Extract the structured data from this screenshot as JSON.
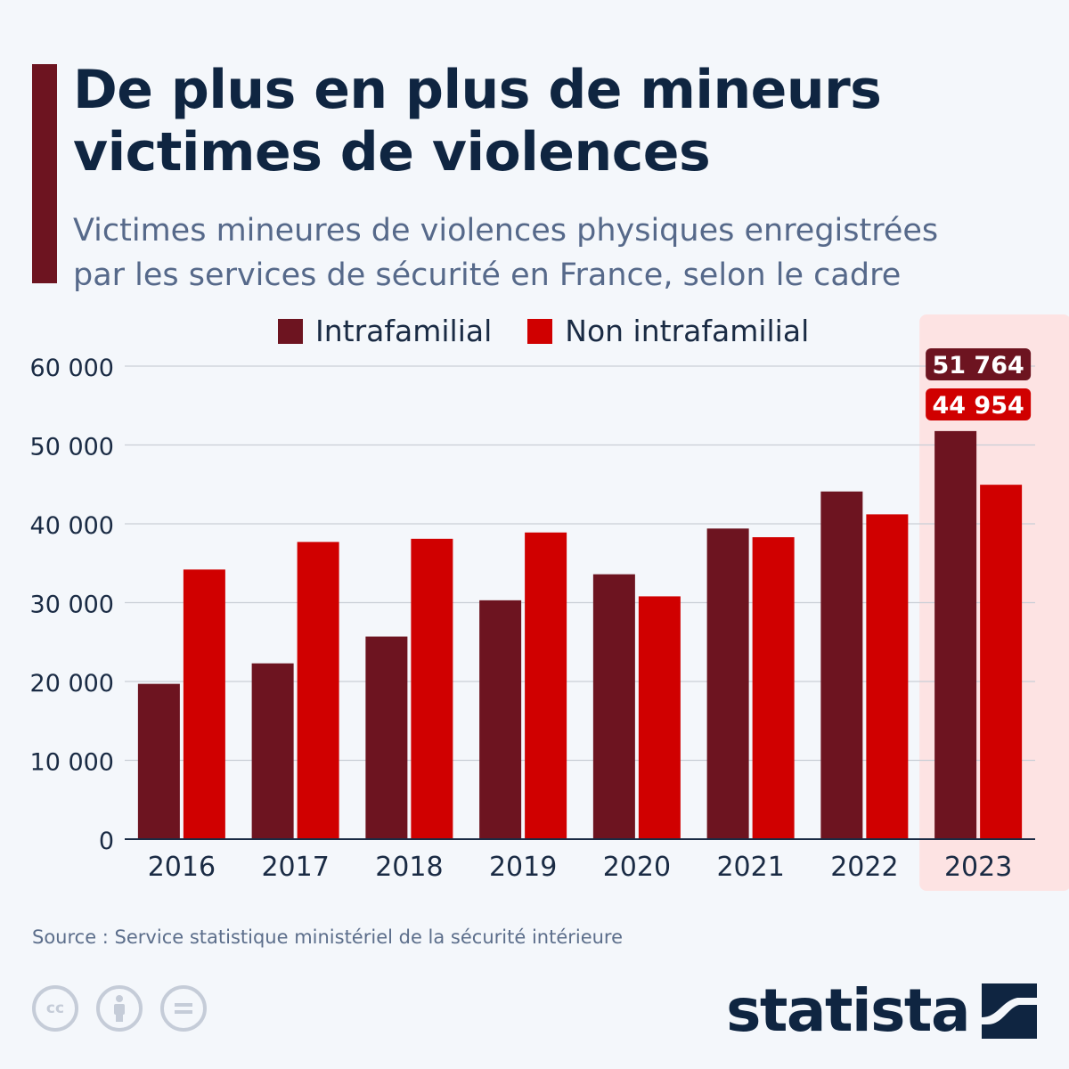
{
  "title_line1": "De plus en plus de mineurs",
  "title_line2": "victimes de violences",
  "subtitle_line1": "Victimes mineures de violences physiques enregistrées",
  "subtitle_line2": "par les services de sécurité en France, selon le cadre",
  "source": "Source : Service statistique ministériel de la sécurité intérieure",
  "brand": "statista",
  "icons": [
    "cc-license-icon",
    "attribution-icon",
    "no-derivatives-icon"
  ],
  "cc_label": "cc",
  "colors": {
    "intrafamilial": "#6d1420",
    "non_intrafamilial": "#d00000",
    "highlight_bg": "#fde3e3",
    "text_dark": "#0f2541",
    "subtitle": "#56698a"
  },
  "chart_data": {
    "type": "bar",
    "categories": [
      "2016",
      "2017",
      "2018",
      "2019",
      "2020",
      "2021",
      "2022",
      "2023"
    ],
    "series": [
      {
        "name": "Intrafamilial",
        "values": [
          19700,
          22300,
          25700,
          30300,
          33600,
          39400,
          44100,
          51764
        ]
      },
      {
        "name": "Non intrafamilial",
        "values": [
          34200,
          37700,
          38100,
          38900,
          30800,
          38300,
          41200,
          44954
        ]
      }
    ],
    "yticks": [
      "0",
      "10 000",
      "20 000",
      "30 000",
      "40 000",
      "50 000",
      "60 000"
    ],
    "ylim": [
      0,
      60000
    ],
    "grid": true,
    "legend_position": "top",
    "highlight_category": "2023",
    "annotations": [
      {
        "series": "Intrafamilial",
        "category": "2023",
        "label": "51 764"
      },
      {
        "series": "Non intrafamilial",
        "category": "2023",
        "label": "44 954"
      }
    ]
  }
}
